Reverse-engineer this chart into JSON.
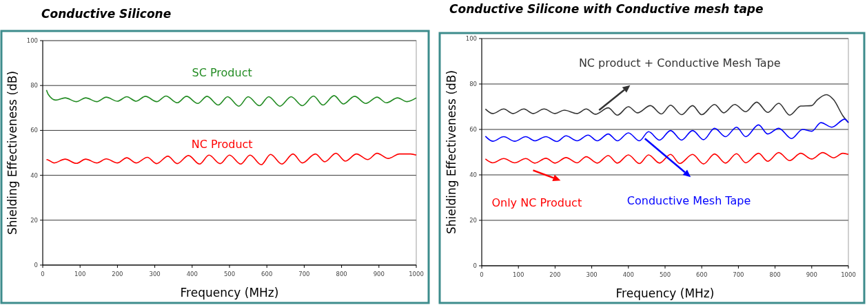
{
  "chart_data": [
    {
      "type": "line",
      "title": "Conductive Silicone",
      "xlabel": "Frequency (MHz)",
      "ylabel": "Shielding Effectiveness (dB)",
      "xlim": [
        0,
        1000
      ],
      "xticks": [
        0,
        100,
        200,
        300,
        400,
        500,
        600,
        700,
        800,
        900,
        1000
      ],
      "ylim": [
        0,
        100
      ],
      "yticks": [
        0,
        20,
        40,
        60,
        80,
        100
      ],
      "grid": "y",
      "marker": "none",
      "line_style": "solid",
      "series": [
        {
          "name": "SC Product",
          "color": "#228b22",
          "x": [
            10,
            15,
            35,
            60,
            90,
            115,
            145,
            170,
            200,
            225,
            250,
            275,
            305,
            330,
            360,
            385,
            415,
            440,
            470,
            495,
            525,
            550,
            580,
            605,
            635,
            665,
            695,
            725,
            750,
            780,
            805,
            835,
            865,
            895,
            920,
            950,
            975,
            1000
          ],
          "values": [
            78,
            76,
            73.5,
            74.5,
            72.8,
            74.5,
            72.8,
            74.8,
            73,
            75,
            73,
            75.2,
            72.8,
            75.3,
            72.3,
            75.2,
            72,
            75.2,
            71.3,
            75,
            70.8,
            75,
            71,
            75,
            70.8,
            75,
            71,
            75.3,
            71.3,
            75.5,
            71.8,
            75.2,
            72,
            74.8,
            72.3,
            74.5,
            72.8,
            74.5
          ]
        },
        {
          "name": "NC Product",
          "color": "#ff0000",
          "x": [
            10,
            15,
            30,
            60,
            90,
            115,
            145,
            170,
            200,
            225,
            250,
            280,
            305,
            335,
            360,
            390,
            420,
            445,
            475,
            500,
            530,
            555,
            585,
            610,
            640,
            670,
            695,
            730,
            755,
            785,
            810,
            840,
            870,
            895,
            925,
            955,
            985,
            1000
          ],
          "values": [
            47,
            46.8,
            45.5,
            47.2,
            45.3,
            47.2,
            45.5,
            47.3,
            45.5,
            47.8,
            45.5,
            48,
            45.2,
            48.5,
            45.2,
            48.8,
            45,
            49,
            45.2,
            49,
            45,
            49,
            44.7,
            49.3,
            45,
            49.5,
            45.5,
            49.5,
            46,
            49.8,
            46.3,
            49.5,
            47,
            49.8,
            47.5,
            49.5,
            49.5,
            49
          ]
        }
      ]
    },
    {
      "type": "line",
      "title": "Conductive Silicone with  Conductive mesh tape",
      "xlabel": "Frequency (MHz)",
      "ylabel": "Shielding Effectiveness (dB)",
      "xlim": [
        0,
        1000
      ],
      "xticks": [
        0,
        100,
        200,
        300,
        400,
        500,
        600,
        700,
        800,
        900,
        1000
      ],
      "ylim": [
        0,
        100
      ],
      "yticks": [
        0,
        20,
        40,
        60,
        80,
        100
      ],
      "grid": "y",
      "marker": "none",
      "line_style": "solid",
      "series": [
        {
          "name": "NC product + Conductive Mesh Tape",
          "color": "#333333",
          "x": [
            10,
            30,
            60,
            85,
            115,
            140,
            170,
            200,
            225,
            260,
            285,
            310,
            345,
            370,
            400,
            425,
            460,
            490,
            515,
            545,
            575,
            600,
            635,
            660,
            690,
            720,
            750,
            780,
            810,
            840,
            870,
            900,
            915,
            940,
            960,
            985,
            1000
          ],
          "values": [
            69,
            67,
            69,
            67,
            69,
            67,
            69,
            67,
            68.5,
            67,
            69,
            66.7,
            69.5,
            66.3,
            70,
            67.3,
            70.5,
            66.8,
            70.7,
            66.5,
            70.5,
            66.5,
            71,
            67.3,
            71,
            67.8,
            72,
            67.5,
            71.5,
            66.3,
            70.3,
            70.5,
            73,
            75.3,
            73,
            66,
            63
          ]
        },
        {
          "name": "Conductive Mesh Tape",
          "color": "#0000ff",
          "x": [
            10,
            30,
            60,
            90,
            120,
            145,
            175,
            205,
            230,
            260,
            290,
            315,
            345,
            370,
            400,
            430,
            455,
            485,
            515,
            545,
            575,
            605,
            635,
            665,
            695,
            720,
            755,
            780,
            810,
            845,
            875,
            900,
            925,
            955,
            990,
            1000
          ],
          "values": [
            57,
            54.8,
            56.8,
            54.8,
            56.8,
            55,
            56.8,
            54.7,
            57.2,
            55,
            57.5,
            55,
            58,
            55,
            58.5,
            55,
            59,
            55.3,
            59.5,
            55.3,
            59.5,
            55.5,
            60.5,
            56.8,
            61,
            56.8,
            62,
            58,
            60.5,
            56,
            60,
            59.2,
            63,
            61,
            64.5,
            63
          ]
        },
        {
          "name": "Only NC Product",
          "color": "#ff0000",
          "x": [
            10,
            30,
            60,
            90,
            120,
            145,
            175,
            200,
            230,
            260,
            285,
            315,
            345,
            370,
            400,
            430,
            455,
            485,
            515,
            540,
            575,
            605,
            635,
            665,
            695,
            720,
            755,
            780,
            810,
            840,
            870,
            900,
            930,
            960,
            985,
            1000
          ],
          "values": [
            47,
            45.3,
            47.2,
            45.3,
            47.2,
            45.2,
            47.3,
            45.2,
            47.6,
            45.3,
            48,
            45.2,
            48.5,
            45.2,
            48.8,
            45,
            48.8,
            45.2,
            49,
            45,
            49,
            44.8,
            49.2,
            45.2,
            49.3,
            45.3,
            49.5,
            46,
            49.8,
            46.3,
            49.5,
            47,
            49.8,
            47.5,
            49.5,
            49
          ]
        }
      ]
    }
  ]
}
